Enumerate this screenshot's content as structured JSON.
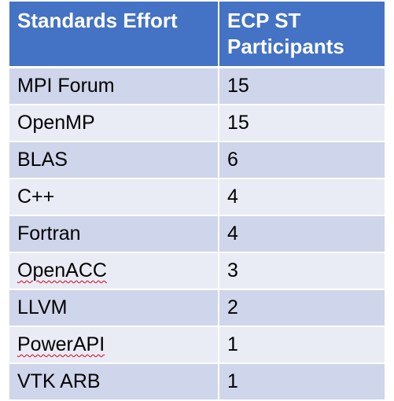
{
  "table": {
    "headers": [
      "Standards Effort",
      "ECP ST Participants"
    ],
    "rows": [
      {
        "effort": "MPI Forum",
        "participants": "15",
        "spellcheck": false
      },
      {
        "effort": "OpenMP",
        "participants": "15",
        "spellcheck": false
      },
      {
        "effort": "BLAS",
        "participants": "6",
        "spellcheck": false
      },
      {
        "effort": "C++",
        "participants": "4",
        "spellcheck": false
      },
      {
        "effort": "Fortran",
        "participants": "4",
        "spellcheck": false
      },
      {
        "effort": "OpenACC",
        "participants": "3",
        "spellcheck": true
      },
      {
        "effort": "LLVM",
        "participants": "2",
        "spellcheck": false
      },
      {
        "effort": "PowerAPI",
        "participants": "1",
        "spellcheck": true
      },
      {
        "effort": "VTK ARB",
        "participants": "1",
        "spellcheck": false
      }
    ]
  },
  "colors": {
    "header_bg": "#4472c4",
    "row_odd_bg": "#cfd5ea",
    "row_even_bg": "#e9ebf5",
    "spellcheck_underline": "#d9001b"
  }
}
